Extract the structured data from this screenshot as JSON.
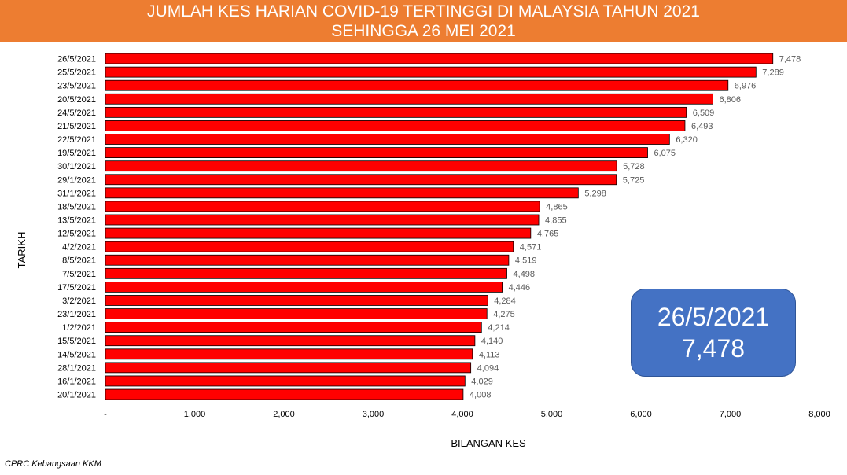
{
  "chart_data": {
    "type": "bar",
    "orientation": "horizontal",
    "title": [
      "JUMLAH KES HARIAN COVID-19 TERTINGGI DI MALAYSIA TAHUN 2021",
      "SEHINGGA 26 MEI 2021"
    ],
    "xlabel": "BILANGAN KES",
    "ylabel": "TARIKH",
    "xlim": [
      0,
      8000
    ],
    "x_ticks": [
      "-",
      "1,000",
      "2,000",
      "3,000",
      "4,000",
      "5,000",
      "6,000",
      "7,000",
      "8,000"
    ],
    "grid": false,
    "bar_color": "#FF0000",
    "categories": [
      "26/5/2021",
      "25/5/2021",
      "23/5/2021",
      "20/5/2021",
      "24/5/2021",
      "21/5/2021",
      "22/5/2021",
      "19/5/2021",
      "30/1/2021",
      "29/1/2021",
      "31/1/2021",
      "18/5/2021",
      "13/5/2021",
      "12/5/2021",
      "4/2/2021",
      "8/5/2021",
      "7/5/2021",
      "17/5/2021",
      "3/2/2021",
      "23/1/2021",
      "1/2/2021",
      "15/5/2021",
      "14/5/2021",
      "28/1/2021",
      "16/1/2021",
      "20/1/2021"
    ],
    "values": [
      7478,
      7289,
      6976,
      6806,
      6509,
      6493,
      6320,
      6075,
      5728,
      5725,
      5298,
      4865,
      4855,
      4765,
      4571,
      4519,
      4498,
      4446,
      4284,
      4275,
      4214,
      4140,
      4113,
      4094,
      4029,
      4008
    ],
    "value_labels": [
      "7,478",
      "7,289",
      "6,976",
      "6,806",
      "6,509",
      "6,493",
      "6,320",
      "6,075",
      "5,728",
      "5,725",
      "5,298",
      "4,865",
      "4,855",
      "4,765",
      "4,571",
      "4,519",
      "4,498",
      "4,446",
      "4,284",
      "4,275",
      "4,214",
      "4,140",
      "4,113",
      "4,094",
      "4,029",
      "4,008"
    ]
  },
  "highlight": {
    "date": "26/5/2021",
    "value": "7,478",
    "color": "#4472C4"
  },
  "title_color": "#ED7D31",
  "source": "CPRC Kebangsaan KKM"
}
